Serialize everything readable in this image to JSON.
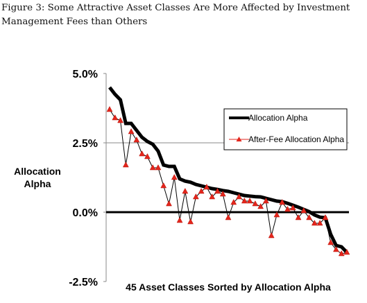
{
  "figure": {
    "caption": "Figure 3: Some Attractive Asset Classes Are More Affected by Investment Management Fees than Others"
  },
  "chart_data": {
    "type": "line",
    "xlabel": "45 Asset Classes Sorted by Allocation Alpha",
    "ylabel": "Allocation Alpha",
    "ylim": [
      -2.5,
      5.0
    ],
    "yticks": [
      5.0,
      2.5,
      0.0,
      -2.5
    ],
    "ytick_labels": [
      "5.0%",
      "2.5%",
      "0.0%",
      "-2.5%"
    ],
    "grid": "horizontal at 2.5%",
    "legend_position": "top-right",
    "x": [
      1,
      2,
      3,
      4,
      5,
      6,
      7,
      8,
      9,
      10,
      11,
      12,
      13,
      14,
      15,
      16,
      17,
      18,
      19,
      20,
      21,
      22,
      23,
      24,
      25,
      26,
      27,
      28,
      29,
      30,
      31,
      32,
      33,
      34,
      35,
      36,
      37,
      38,
      39,
      40,
      41,
      42,
      43,
      44,
      45
    ],
    "series": [
      {
        "name": "Allocation Alpha",
        "color": "#000000",
        "style": "thick-line",
        "values": [
          4.5,
          4.25,
          4.05,
          3.2,
          3.2,
          2.95,
          2.7,
          2.55,
          2.45,
          2.2,
          1.7,
          1.65,
          1.65,
          1.2,
          1.12,
          1.08,
          1.0,
          0.95,
          0.9,
          0.85,
          0.82,
          0.78,
          0.75,
          0.7,
          0.65,
          0.6,
          0.58,
          0.56,
          0.55,
          0.5,
          0.45,
          0.4,
          0.38,
          0.32,
          0.25,
          0.18,
          0.1,
          0.02,
          -0.1,
          -0.18,
          -0.2,
          -0.8,
          -1.2,
          -1.25,
          -1.45
        ]
      },
      {
        "name": "After-Fee Allocation Alpha",
        "color": "#e3261c",
        "style": "thin-line-triangle-markers",
        "values": [
          3.7,
          3.4,
          3.3,
          1.7,
          2.9,
          2.6,
          2.1,
          2.0,
          1.6,
          1.6,
          0.95,
          0.3,
          1.25,
          -0.3,
          0.75,
          -0.35,
          0.55,
          0.75,
          0.9,
          0.55,
          0.75,
          0.65,
          -0.2,
          0.35,
          0.55,
          0.4,
          0.4,
          0.3,
          0.2,
          0.4,
          -0.85,
          -0.1,
          0.35,
          0.1,
          0.15,
          -0.2,
          0.05,
          -0.2,
          -0.4,
          -0.4,
          -0.2,
          -1.1,
          -1.35,
          -1.5,
          -1.45
        ]
      }
    ]
  }
}
